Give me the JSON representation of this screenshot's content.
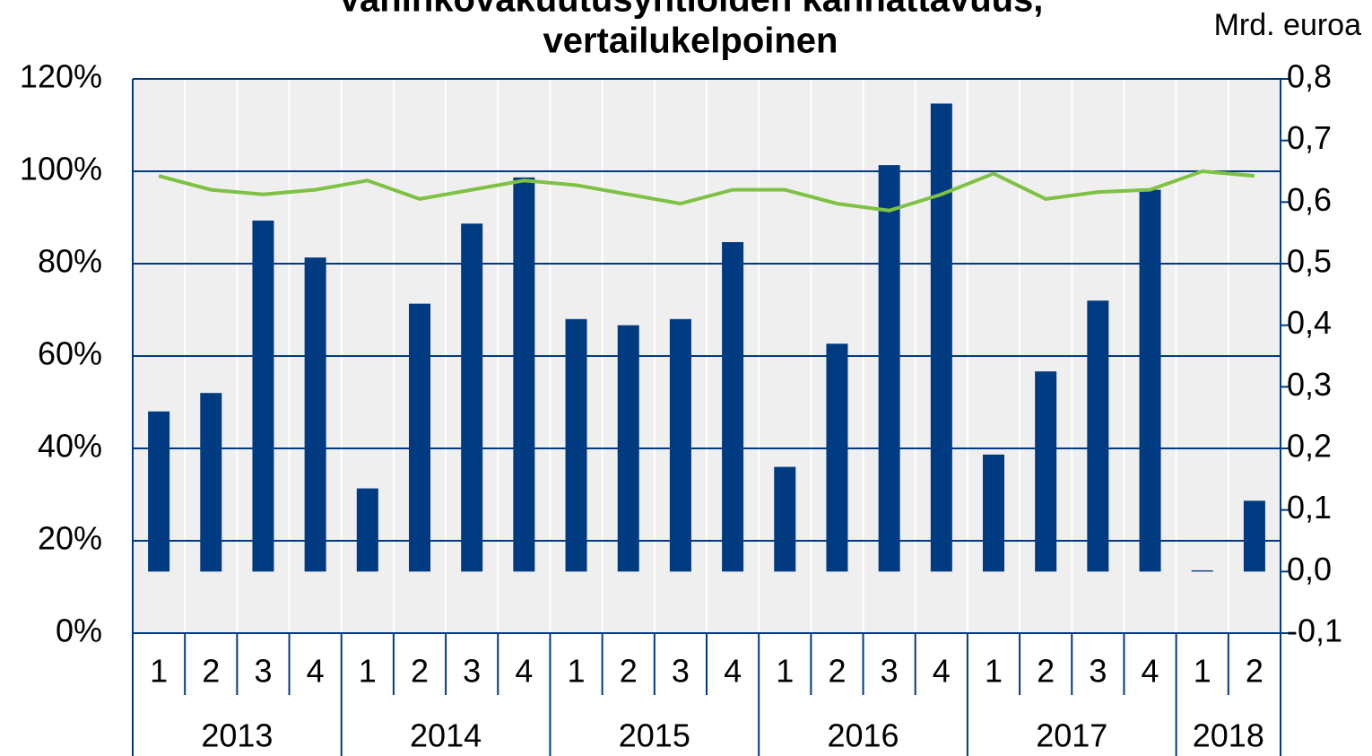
{
  "chart_data": {
    "type": "bar_line",
    "title": [
      "Vahinkovakuutusyhtiöiden kannattavuus,",
      "vertailukelpoinen"
    ],
    "y2_label": "Mrd. euroa",
    "groups": [
      {
        "label": "2013",
        "categories": [
          "1",
          "2",
          "3",
          "4"
        ]
      },
      {
        "label": "2014",
        "categories": [
          "1",
          "2",
          "3",
          "4"
        ]
      },
      {
        "label": "2015",
        "categories": [
          "1",
          "2",
          "3",
          "4"
        ]
      },
      {
        "label": "2016",
        "categories": [
          "1",
          "2",
          "3",
          "4"
        ]
      },
      {
        "label": "2017",
        "categories": [
          "1",
          "2",
          "3",
          "4"
        ]
      },
      {
        "label": "2018",
        "categories": [
          "1",
          "2"
        ]
      }
    ],
    "series": [
      {
        "type": "bar",
        "axis": "y2",
        "color": "#003a80",
        "values": [
          0.26,
          0.29,
          0.57,
          0.51,
          0.135,
          0.435,
          0.565,
          0.64,
          0.41,
          0.4,
          0.41,
          0.535,
          0.17,
          0.37,
          0.66,
          0.76,
          0.19,
          0.325,
          0.44,
          0.62,
          0.002,
          0.115
        ]
      },
      {
        "type": "line",
        "axis": "y",
        "color": "#7dc242",
        "values": [
          99,
          96,
          95,
          96,
          98,
          94,
          96,
          98,
          97,
          95,
          93,
          96,
          96,
          93,
          91.5,
          95,
          99.5,
          94,
          95.5,
          96,
          100,
          99
        ]
      }
    ],
    "ylim": [
      0,
      120
    ],
    "yticks": [
      {
        "value": 0,
        "label": "0%"
      },
      {
        "value": 20,
        "label": "20%"
      },
      {
        "value": 40,
        "label": "40%"
      },
      {
        "value": 60,
        "label": "60%"
      },
      {
        "value": 80,
        "label": "80%"
      },
      {
        "value": 100,
        "label": "100%"
      },
      {
        "value": 120,
        "label": "120%"
      }
    ],
    "y2lim": [
      -0.1,
      0.8
    ],
    "y2ticks": [
      {
        "value": -0.1,
        "label": "-0,1"
      },
      {
        "value": 0,
        "label": "0,0"
      },
      {
        "value": 0.1,
        "label": "0,1"
      },
      {
        "value": 0.2,
        "label": "0,2"
      },
      {
        "value": 0.3,
        "label": "0,3"
      },
      {
        "value": 0.4,
        "label": "0,4"
      },
      {
        "value": 0.5,
        "label": "0,5"
      },
      {
        "value": 0.6,
        "label": "0,6"
      },
      {
        "value": 0.7,
        "label": "0,7"
      },
      {
        "value": 0.8,
        "label": "0,8"
      }
    ],
    "grid": true
  }
}
